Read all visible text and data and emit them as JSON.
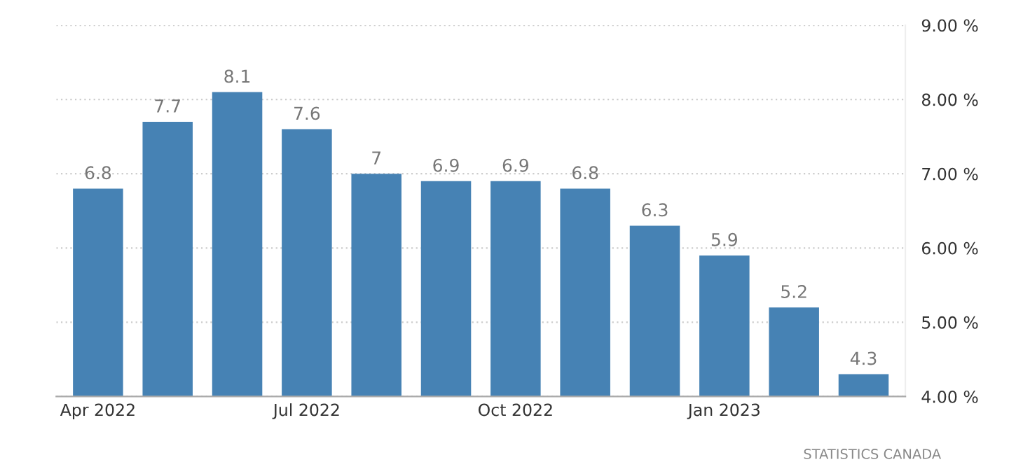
{
  "chart_data": {
    "type": "bar",
    "categories": [
      "Apr 2022",
      null,
      null,
      "Jul 2022",
      null,
      null,
      "Oct 2022",
      null,
      null,
      "Jan 2023",
      null,
      null
    ],
    "values": [
      6.8,
      7.7,
      8.1,
      7.6,
      7.0,
      6.9,
      6.9,
      6.8,
      6.3,
      5.9,
      5.2,
      4.3
    ],
    "value_labels": [
      "6.8",
      "7.7",
      "8.1",
      "7.6",
      "7",
      "6.9",
      "6.9",
      "6.8",
      "6.3",
      "5.9",
      "5.2",
      "4.3"
    ],
    "color": "#4682b4",
    "ylim": [
      4,
      9
    ],
    "yticks": [
      {
        "value": 4,
        "label": "4.00 %"
      },
      {
        "value": 5,
        "label": "5.00 %"
      },
      {
        "value": 6,
        "label": "6.00 %"
      },
      {
        "value": 7,
        "label": "7.00 %"
      },
      {
        "value": 8,
        "label": "8.00 %"
      },
      {
        "value": 9,
        "label": "9.00 %"
      }
    ],
    "grid": "y",
    "annotations": [
      "STATISTICS CANADA"
    ]
  }
}
